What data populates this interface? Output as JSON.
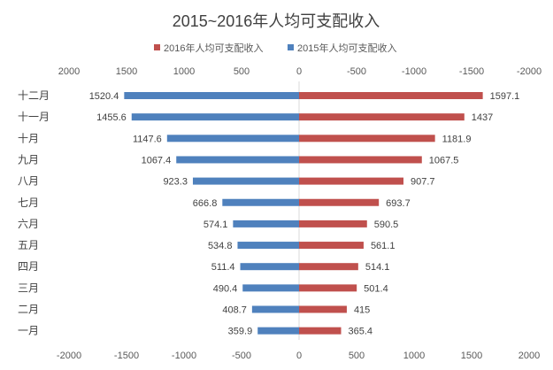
{
  "chart_data": {
    "type": "bar",
    "orientation": "horizontal",
    "layout": "butterfly",
    "title": "2015~2016年人均可支配收入",
    "categories": [
      "一月",
      "二月",
      "三月",
      "四月",
      "五月",
      "六月",
      "七月",
      "八月",
      "九月",
      "十月",
      "十一月",
      "十二月"
    ],
    "series": [
      {
        "name": "2016年人均可支配收入",
        "color": "#c0504d",
        "side": "right",
        "values": [
          365.4,
          415,
          501.4,
          514.1,
          561.1,
          590.5,
          693.7,
          907.7,
          1067.5,
          1181.9,
          1437,
          1597.1
        ],
        "labels": [
          "365.4",
          "415",
          "501.4",
          "514.1",
          "561.1",
          "590.5",
          "693.7",
          "907.7",
          "1067.5",
          "1181.9",
          "1437",
          "1597.1"
        ]
      },
      {
        "name": "2015年人均可支配收入",
        "color": "#4f81bd",
        "side": "left",
        "values": [
          359.9,
          408.7,
          490.4,
          511.4,
          534.8,
          574.1,
          666.8,
          923.3,
          1067.4,
          1147.6,
          1455.6,
          1520.4
        ],
        "labels": [
          "359.9",
          "408.7",
          "490.4",
          "511.4",
          "534.8",
          "574.1",
          "666.8",
          "923.3",
          "1067.4",
          "1147.6",
          "1455.6",
          "1520.4"
        ]
      }
    ],
    "xlim": [
      -2000,
      2000
    ],
    "ticks": [
      -2000,
      -1500,
      -1000,
      -500,
      0,
      500,
      1000,
      1500,
      2000
    ],
    "top_tick_labels": [
      "2000",
      "1500",
      "1000",
      "500",
      "0",
      "-500",
      "-1000",
      "-1500",
      "-2000"
    ],
    "bottom_tick_labels": [
      "-2000",
      "-1500",
      "-1000",
      "-500",
      "0",
      "500",
      "1000",
      "1500",
      "2000"
    ],
    "legend_position": "top",
    "grid": false
  }
}
